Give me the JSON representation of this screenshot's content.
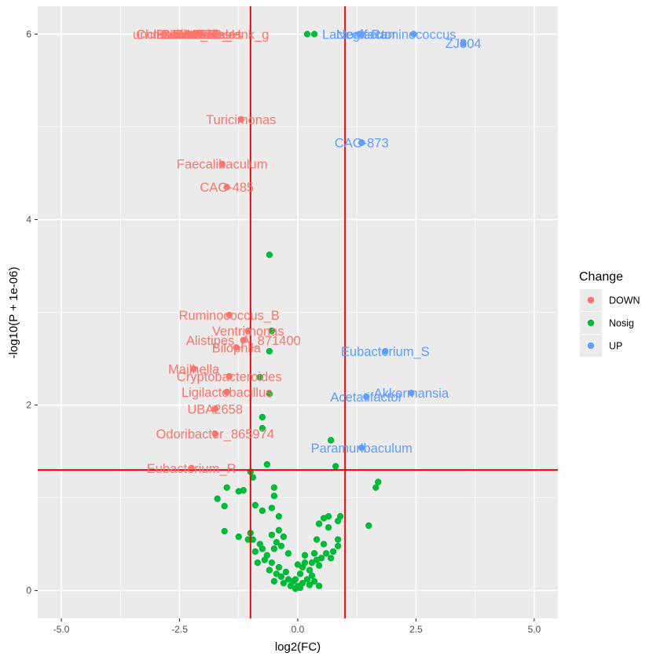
{
  "chart_data": {
    "type": "scatter",
    "subtype": "volcano",
    "xlabel": "log2(FC)",
    "ylabel": "-log10(P + 1e-06)",
    "xlim": [
      -5.5,
      5.5
    ],
    "ylim": [
      -0.3,
      6.3
    ],
    "x_ticks": [
      -5.0,
      -2.5,
      0.0,
      2.5,
      5.0
    ],
    "x_tick_labels": [
      "-5.0",
      "-2.5",
      "0.0",
      "2.5",
      "5.0"
    ],
    "y_ticks": [
      0,
      2,
      4,
      6
    ],
    "y_tick_labels": [
      "0",
      "2",
      "4",
      "6"
    ],
    "threshold_lines": {
      "vertical": [
        -1,
        1
      ],
      "horizontal": [
        1.3
      ],
      "color": "#ff0000"
    },
    "background_color": "#ebebeb",
    "grid": true,
    "legend": {
      "title": "Change",
      "position": "right",
      "entries": [
        {
          "label": "DOWN",
          "color": "#F8766D"
        },
        {
          "label": "Nosig",
          "color": "#00BA38"
        },
        {
          "label": "UP",
          "color": "#619CFF"
        }
      ]
    },
    "series": [
      {
        "name": "DOWN",
        "color": "#F8766D",
        "points": [
          {
            "x": -2.3,
            "y": 6.0,
            "label": "Christensenellales"
          },
          {
            "x": -2.25,
            "y": 6.0,
            "label": "UBA1777"
          },
          {
            "x": -2.2,
            "y": 6.0,
            "label": "UBA3263"
          },
          {
            "x": -2.15,
            "y": 6.0,
            "label": "Bacteroides"
          },
          {
            "x": -2.1,
            "y": 6.0,
            "label": "Bacteroides_H"
          },
          {
            "x": -2.05,
            "y": 6.0,
            "label": "unclassified_no_rank_g"
          },
          {
            "x": -1.2,
            "y": 5.08,
            "label": "Turicimonas"
          },
          {
            "x": -1.6,
            "y": 4.6,
            "label": "Faecalibaculum"
          },
          {
            "x": -1.5,
            "y": 4.35,
            "label": "CAG-485"
          },
          {
            "x": -1.45,
            "y": 2.97,
            "label": "Ruminococcus_B"
          },
          {
            "x": -1.05,
            "y": 2.8,
            "label": "Ventrimonas"
          },
          {
            "x": -1.15,
            "y": 2.7,
            "label": "Alistipes_A_871400"
          },
          {
            "x": -1.3,
            "y": 2.62,
            "label": "Bilophila"
          },
          {
            "x": -2.2,
            "y": 2.39,
            "label": "Mailhella"
          },
          {
            "x": -1.45,
            "y": 2.31,
            "label": "Cryptobacteroides"
          },
          {
            "x": -1.5,
            "y": 2.14,
            "label": "Ligilactobacillus"
          },
          {
            "x": -1.75,
            "y": 1.96,
            "label": "UBA2658"
          },
          {
            "x": -1.75,
            "y": 1.69,
            "label": "Odoribacter_865974"
          },
          {
            "x": -2.25,
            "y": 1.32,
            "label": "Eubacterium_R"
          }
        ]
      },
      {
        "name": "Nosig",
        "color": "#00BA38",
        "points": [
          {
            "x": 0.2,
            "y": 6.0,
            "label": ""
          },
          {
            "x": 0.35,
            "y": 6.0,
            "label": ""
          },
          {
            "x": -0.6,
            "y": 3.62,
            "label": ""
          },
          {
            "x": -0.55,
            "y": 2.8,
            "label": ""
          },
          {
            "x": -0.6,
            "y": 2.58,
            "label": ""
          },
          {
            "x": -0.8,
            "y": 2.3,
            "label": ""
          },
          {
            "x": -0.6,
            "y": 2.12,
            "label": ""
          },
          {
            "x": -0.75,
            "y": 1.87,
            "label": ""
          },
          {
            "x": -0.75,
            "y": 1.75,
            "label": ""
          },
          {
            "x": 0.7,
            "y": 1.62,
            "label": ""
          },
          {
            "x": -0.65,
            "y": 1.36,
            "label": ""
          },
          {
            "x": 0.8,
            "y": 1.34,
            "label": ""
          },
          {
            "x": -1.0,
            "y": 1.28,
            "label": ""
          },
          {
            "x": -0.95,
            "y": 1.22,
            "label": ""
          },
          {
            "x": -0.5,
            "y": 1.11,
            "label": ""
          },
          {
            "x": -1.15,
            "y": 1.08,
            "label": ""
          },
          {
            "x": -1.5,
            "y": 1.11,
            "label": ""
          },
          {
            "x": -1.55,
            "y": 0.91,
            "label": ""
          },
          {
            "x": -1.7,
            "y": 0.99,
            "label": ""
          },
          {
            "x": -1.25,
            "y": 1.07,
            "label": ""
          },
          {
            "x": -0.9,
            "y": 0.92,
            "label": ""
          },
          {
            "x": -0.5,
            "y": 1.02,
            "label": ""
          },
          {
            "x": -0.75,
            "y": 0.86,
            "label": ""
          },
          {
            "x": -0.55,
            "y": 0.89,
            "label": ""
          },
          {
            "x": -0.4,
            "y": 0.8,
            "label": ""
          },
          {
            "x": 1.7,
            "y": 1.17,
            "label": ""
          },
          {
            "x": 1.65,
            "y": 1.11,
            "label": ""
          },
          {
            "x": 1.5,
            "y": 0.7,
            "label": ""
          },
          {
            "x": 0.9,
            "y": 0.8,
            "label": ""
          },
          {
            "x": 0.85,
            "y": 0.75,
            "label": ""
          },
          {
            "x": 0.65,
            "y": 0.8,
            "label": ""
          },
          {
            "x": 0.55,
            "y": 0.78,
            "label": ""
          },
          {
            "x": 0.45,
            "y": 0.72,
            "label": ""
          },
          {
            "x": 0.85,
            "y": 0.55,
            "label": ""
          },
          {
            "x": 0.85,
            "y": 0.48,
            "label": ""
          },
          {
            "x": 0.75,
            "y": 0.42,
            "label": ""
          },
          {
            "x": 0.7,
            "y": 0.35,
            "label": ""
          },
          {
            "x": 0.65,
            "y": 0.68,
            "label": ""
          },
          {
            "x": 0.4,
            "y": 0.55,
            "label": ""
          },
          {
            "x": 0.35,
            "y": 0.4,
            "label": ""
          },
          {
            "x": 0.3,
            "y": 0.3,
            "label": ""
          },
          {
            "x": 0.45,
            "y": 0.27,
            "label": ""
          },
          {
            "x": 0.15,
            "y": 0.38,
            "label": ""
          },
          {
            "x": 0.25,
            "y": 0.22,
            "label": ""
          },
          {
            "x": 0.3,
            "y": 0.16,
            "label": ""
          },
          {
            "x": 0.35,
            "y": 0.1,
            "label": ""
          },
          {
            "x": 0.45,
            "y": 0.05,
            "label": ""
          },
          {
            "x": 0.2,
            "y": 0.12,
            "label": ""
          },
          {
            "x": 0.1,
            "y": 0.08,
            "label": ""
          },
          {
            "x": 0.05,
            "y": 0.03,
            "label": ""
          },
          {
            "x": -0.05,
            "y": 0.02,
            "label": ""
          },
          {
            "x": 0.0,
            "y": 0.05,
            "label": ""
          },
          {
            "x": -0.1,
            "y": 0.1,
            "label": ""
          },
          {
            "x": -0.15,
            "y": 0.05,
            "label": ""
          },
          {
            "x": -0.2,
            "y": 0.12,
            "label": ""
          },
          {
            "x": -0.3,
            "y": 0.08,
            "label": ""
          },
          {
            "x": -0.25,
            "y": 0.2,
            "label": ""
          },
          {
            "x": -0.35,
            "y": 0.15,
            "label": ""
          },
          {
            "x": -0.4,
            "y": 0.25,
            "label": ""
          },
          {
            "x": -0.45,
            "y": 0.18,
            "label": ""
          },
          {
            "x": -0.5,
            "y": 0.1,
            "label": ""
          },
          {
            "x": -0.55,
            "y": 0.3,
            "label": ""
          },
          {
            "x": -0.6,
            "y": 0.22,
            "label": ""
          },
          {
            "x": -0.65,
            "y": 0.38,
            "label": ""
          },
          {
            "x": -0.7,
            "y": 0.33,
            "label": ""
          },
          {
            "x": -0.75,
            "y": 0.45,
            "label": ""
          },
          {
            "x": -0.8,
            "y": 0.5,
            "label": ""
          },
          {
            "x": -0.85,
            "y": 0.3,
            "label": ""
          },
          {
            "x": -0.9,
            "y": 0.42,
            "label": ""
          },
          {
            "x": -0.95,
            "y": 0.55,
            "label": ""
          },
          {
            "x": -1.0,
            "y": 0.62,
            "label": ""
          },
          {
            "x": -0.5,
            "y": 0.45,
            "label": ""
          },
          {
            "x": -0.45,
            "y": 0.52,
            "label": ""
          },
          {
            "x": -0.55,
            "y": 0.6,
            "label": ""
          },
          {
            "x": -0.3,
            "y": 0.58,
            "label": ""
          },
          {
            "x": -0.35,
            "y": 0.48,
            "label": ""
          },
          {
            "x": -0.4,
            "y": 0.65,
            "label": ""
          },
          {
            "x": -0.2,
            "y": 0.4,
            "label": ""
          },
          {
            "x": 0.0,
            "y": 0.28,
            "label": ""
          },
          {
            "x": 0.05,
            "y": 0.18,
            "label": ""
          },
          {
            "x": -1.05,
            "y": 0.55,
            "label": ""
          },
          {
            "x": -1.25,
            "y": 0.58,
            "label": ""
          },
          {
            "x": -1.55,
            "y": 0.64,
            "label": ""
          },
          {
            "x": 0.55,
            "y": 0.5,
            "label": ""
          },
          {
            "x": 0.6,
            "y": 0.4,
            "label": ""
          },
          {
            "x": 0.5,
            "y": 0.35,
            "label": ""
          },
          {
            "x": 0.4,
            "y": 0.33,
            "label": ""
          },
          {
            "x": 0.15,
            "y": 0.3,
            "label": ""
          },
          {
            "x": 0.1,
            "y": 0.25,
            "label": ""
          },
          {
            "x": -0.05,
            "y": 0.12,
            "label": ""
          },
          {
            "x": 0.25,
            "y": 0.06,
            "label": ""
          }
        ]
      },
      {
        "name": "UP",
        "color": "#619CFF",
        "points": [
          {
            "x": 1.3,
            "y": 6.0,
            "label": "Lactonifactor"
          },
          {
            "x": 1.35,
            "y": 6.0,
            "label": "Neglecta"
          },
          {
            "x": 2.45,
            "y": 6.0,
            "label": "Ruminococcus"
          },
          {
            "x": 3.5,
            "y": 5.9,
            "label": "ZJ304"
          },
          {
            "x": 1.35,
            "y": 4.83,
            "label": "CAG-873"
          },
          {
            "x": 1.85,
            "y": 2.58,
            "label": "Eubacterium_S"
          },
          {
            "x": 2.4,
            "y": 2.13,
            "label": "Akkermansia"
          },
          {
            "x": 1.45,
            "y": 2.09,
            "label": "Acetatifactor"
          },
          {
            "x": 1.35,
            "y": 1.54,
            "label": "Paramuribaculum"
          }
        ]
      }
    ]
  }
}
